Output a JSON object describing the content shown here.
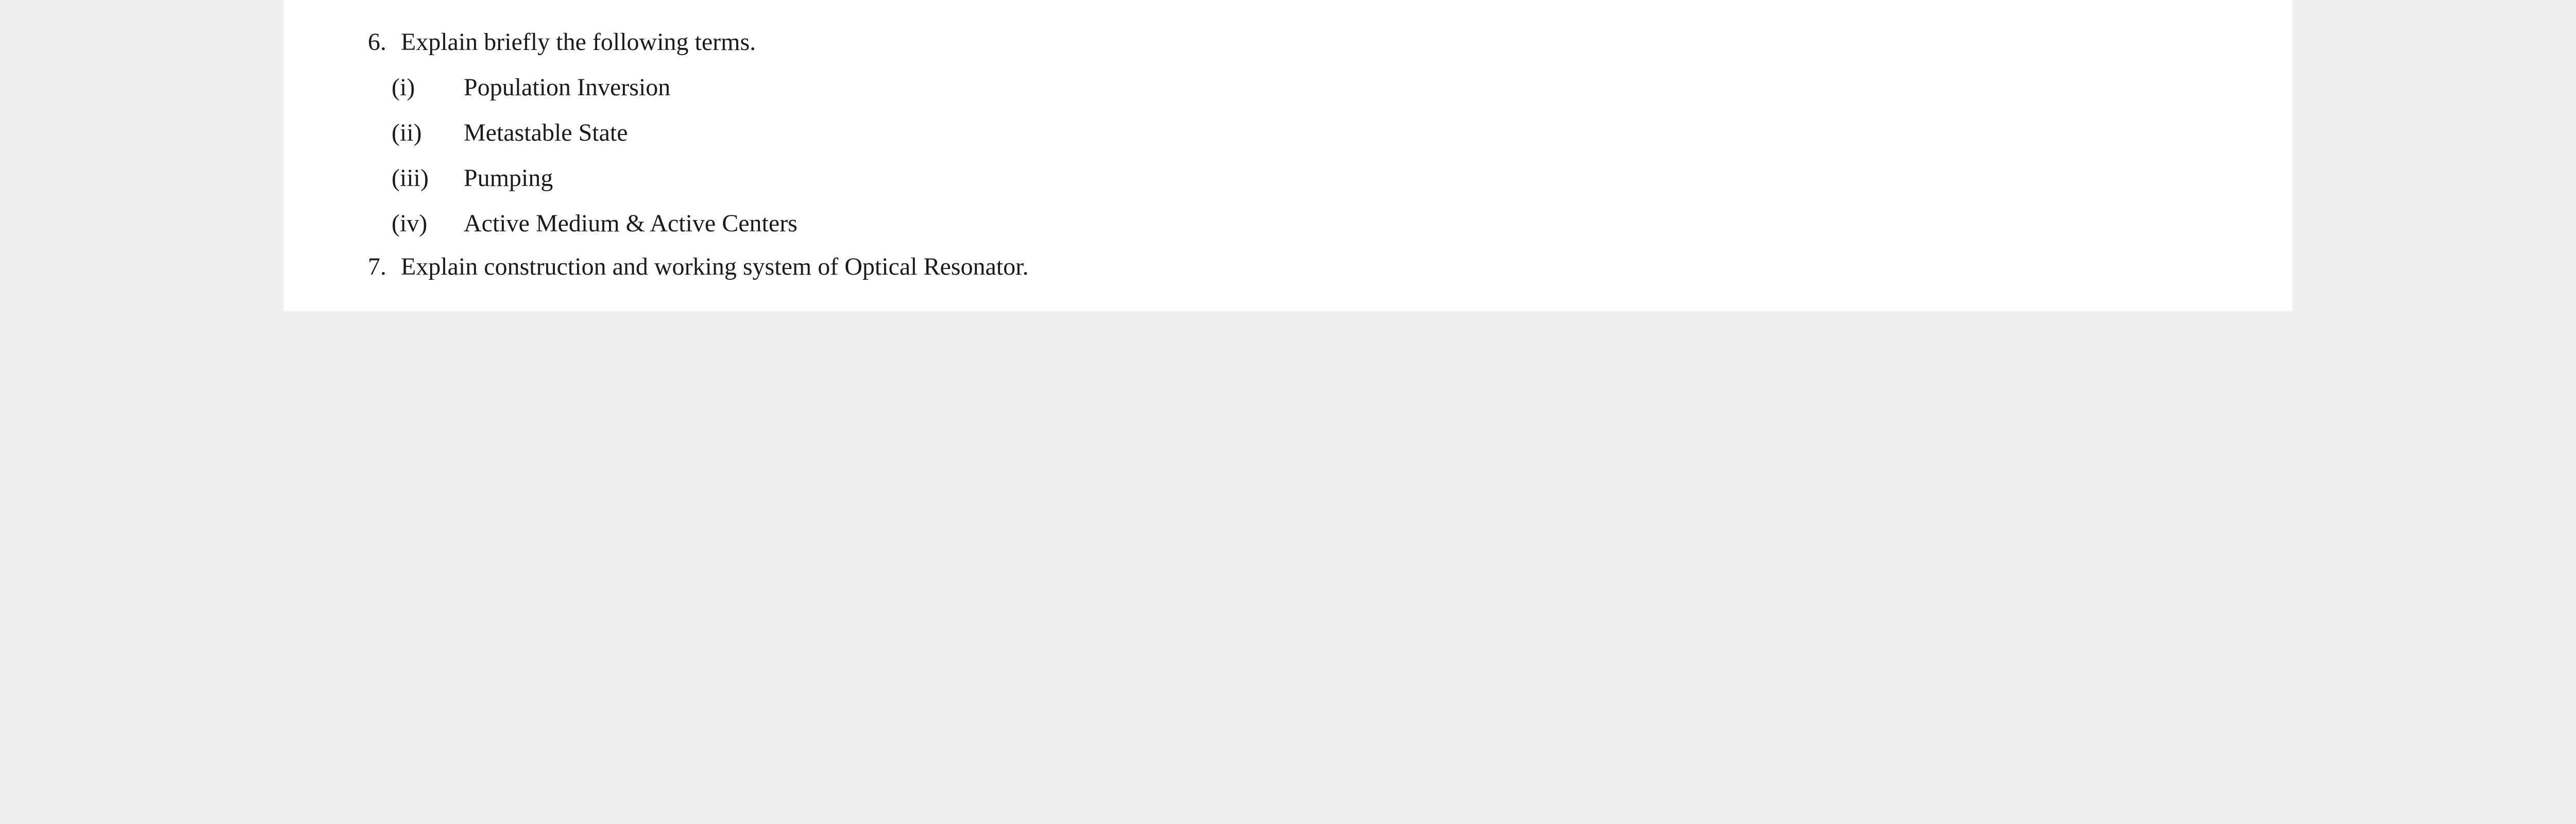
{
  "colors": {
    "page_bg": "#ffffff",
    "outer_bg": "#eeeeee",
    "text": "#1b1b1b"
  },
  "typography": {
    "font_family": "Times New Roman",
    "base_fontsize_pt": 36,
    "line_height": 1.75
  },
  "questions": [
    {
      "number": "6.",
      "text": "Explain briefly the following terms.",
      "subitems": [
        {
          "num": "(i)",
          "text": "Population Inversion"
        },
        {
          "num": "(ii)",
          "text": "Metastable State"
        },
        {
          "num": "(iii)",
          "text": "Pumping"
        },
        {
          "num": "(iv)",
          "text": "Active Medium & Active Centers"
        }
      ]
    },
    {
      "number": "7.",
      "text": "Explain construction and working system of Optical Resonator.",
      "subitems": []
    }
  ]
}
